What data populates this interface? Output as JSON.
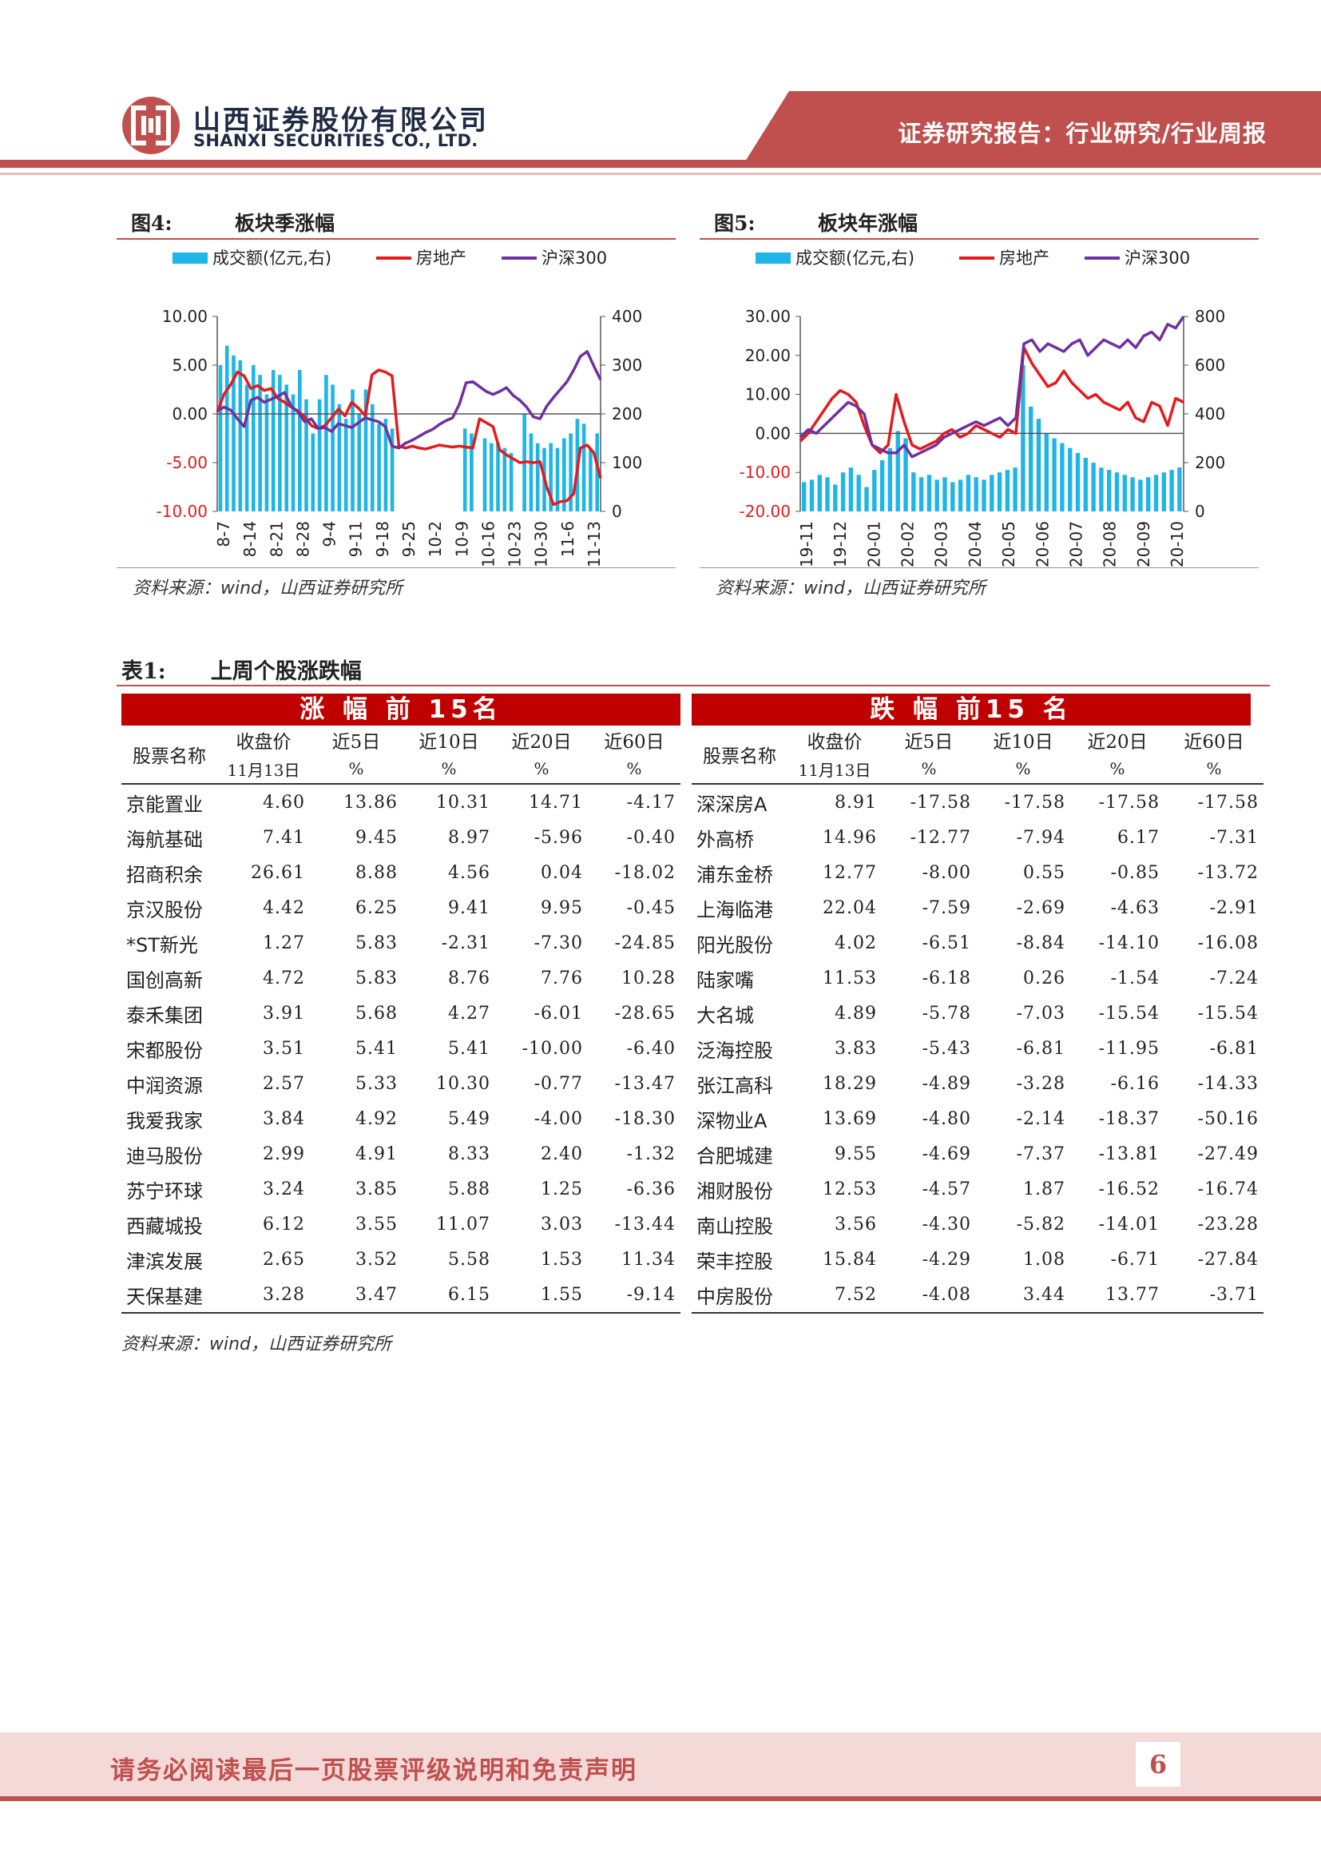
{
  "header": {
    "company_cn": "山西证券股份有限公司",
    "company_en": "SHANXI SECURITIES CO., LTD.",
    "report_type": "证券研究报告：行业研究/行业周报"
  },
  "fig4": {
    "label": "图4:",
    "title": "板块季涨幅",
    "source": "资料来源：wind，山西证券研究所"
  },
  "fig5": {
    "label": "图5:",
    "title": "板块年涨幅",
    "source": "资料来源：wind，山西证券研究所"
  },
  "chart_data": [
    {
      "type": "line",
      "legend": [
        "成交额(亿元,右)",
        "房地产",
        "沪深300"
      ],
      "colors": {
        "volume": "#1fb5e6",
        "realestate": "#e41a1c",
        "hs300": "#7030a0"
      },
      "y_left": {
        "ticks": [
          "10.00",
          "5.00",
          "0.00",
          "-5.00",
          "-10.00"
        ],
        "values": [
          10,
          5,
          0,
          -5,
          -10
        ],
        "range": [
          -10,
          10
        ]
      },
      "y_right": {
        "ticks": [
          "400",
          "300",
          "200",
          "100",
          "0"
        ],
        "values": [
          400,
          300,
          200,
          100,
          0
        ],
        "range": [
          0,
          400
        ]
      },
      "x_ticks": [
        "8-7",
        "8-14",
        "8-21",
        "8-28",
        "9-4",
        "9-11",
        "9-18",
        "9-25",
        "10-2",
        "10-9",
        "10-16",
        "10-23",
        "10-30",
        "11-6",
        "11-13"
      ],
      "series": [
        {
          "name": "房地产",
          "values": [
            0.2,
            2.0,
            3.0,
            4.3,
            3.9,
            2.6,
            2.9,
            2.4,
            2.6,
            1.6,
            1.2,
            0.7,
            0.3,
            -0.3,
            -1.2,
            -1.5,
            -1.2,
            -0.4,
            0.5,
            -0.2,
            1.2,
            0.6,
            -0.2,
            4.0,
            4.5,
            4.3,
            3.9,
            -3.3,
            -3.5,
            -3.3,
            -3.5,
            -3.6,
            -3.4,
            -3.2,
            -3.3,
            -3.4,
            -3.3,
            -3.4,
            -3.5,
            -0.5,
            -0.9,
            -1.3,
            -3.7,
            -4.2,
            -4.6,
            -5.0,
            -4.9,
            -5.0,
            -4.9,
            -7.5,
            -9.3,
            -9.0,
            -8.9,
            -8.2,
            -3.5,
            -3.2,
            -4.0,
            -6.6
          ]
        },
        {
          "name": "沪深300",
          "values": [
            0.3,
            0.7,
            0.4,
            -0.5,
            -1.3,
            1.4,
            1.7,
            1.2,
            1.5,
            1.8,
            2.2,
            0.8,
            0.2,
            -0.8,
            -0.5,
            -1.5,
            -1.4,
            -1.8,
            -1.0,
            -1.2,
            -1.4,
            -0.9,
            -0.4,
            -0.6,
            -0.8,
            -1.3,
            -3.3,
            -3.5,
            -3.0,
            -2.7,
            -2.3,
            -1.9,
            -1.6,
            -1.1,
            -0.7,
            -0.4,
            1.0,
            3.2,
            3.3,
            2.8,
            2.3,
            2.0,
            2.3,
            2.7,
            1.9,
            1.4,
            0.7,
            -0.3,
            -0.5,
            0.8,
            1.7,
            2.5,
            3.3,
            4.5,
            5.9,
            6.4,
            4.9,
            3.5
          ]
        },
        {
          "name": "成交额(亿元,右)",
          "values": [
            300,
            340,
            320,
            310,
            260,
            300,
            280,
            240,
            290,
            280,
            260,
            240,
            290,
            230,
            160,
            230,
            280,
            260,
            220,
            190,
            250,
            200,
            250,
            220,
            180,
            190,
            170,
            0,
            0,
            0,
            0,
            0,
            0,
            0,
            0,
            0,
            0,
            170,
            160,
            0,
            150,
            140,
            140,
            130,
            120,
            0,
            200,
            160,
            140,
            130,
            140,
            130,
            150,
            160,
            190,
            180,
            130,
            160
          ]
        }
      ]
    },
    {
      "type": "line",
      "legend": [
        "成交额(亿元,右)",
        "房地产",
        "沪深300"
      ],
      "colors": {
        "volume": "#1fb5e6",
        "realestate": "#e41a1c",
        "hs300": "#7030a0"
      },
      "y_left": {
        "ticks": [
          "30.00",
          "20.00",
          "10.00",
          "0.00",
          "-10.00",
          "-20.00"
        ],
        "values": [
          30,
          20,
          10,
          0,
          -10,
          -20
        ],
        "range": [
          -20,
          30
        ]
      },
      "y_right": {
        "ticks": [
          "800",
          "600",
          "400",
          "200",
          "0"
        ],
        "values": [
          800,
          600,
          400,
          200,
          0
        ],
        "range": [
          0,
          800
        ]
      },
      "x_ticks": [
        "19-11",
        "19-12",
        "20-01",
        "20-02",
        "20-03",
        "20-04",
        "20-05",
        "20-06",
        "20-07",
        "20-08",
        "20-09",
        "20-10"
      ],
      "series": [
        {
          "name": "房地产",
          "values": [
            -2,
            0,
            3,
            6,
            9,
            11,
            10,
            8,
            2,
            -3,
            -5,
            -3,
            10,
            3,
            -3,
            -4,
            -3,
            -2,
            0,
            1,
            -1,
            0,
            2,
            1,
            0,
            -1,
            1,
            0,
            22,
            18,
            15,
            12,
            13,
            16,
            13,
            11,
            9,
            10,
            8,
            7,
            6,
            8,
            4,
            3,
            8,
            7,
            2,
            9,
            8
          ]
        },
        {
          "name": "沪深300",
          "values": [
            -1,
            1,
            0,
            2,
            4,
            6,
            8,
            7,
            5,
            -3,
            -4,
            -5,
            -5,
            -3,
            -6,
            -5,
            -4,
            -3,
            -1,
            0,
            1,
            2,
            3,
            2,
            3,
            4,
            2,
            4,
            23,
            24,
            21,
            23,
            22,
            21,
            23,
            24,
            20,
            22,
            24,
            23,
            22,
            24,
            22,
            25,
            26,
            24,
            28,
            27,
            30
          ]
        },
        {
          "name": "成交额(亿元,右)",
          "values": [
            120,
            130,
            150,
            140,
            110,
            160,
            180,
            150,
            100,
            170,
            210,
            260,
            330,
            300,
            160,
            140,
            150,
            130,
            140,
            120,
            130,
            150,
            140,
            130,
            150,
            160,
            170,
            180,
            600,
            430,
            380,
            320,
            300,
            280,
            260,
            240,
            220,
            200,
            180,
            170,
            160,
            150,
            140,
            130,
            140,
            150,
            160,
            170,
            180
          ]
        }
      ]
    }
  ],
  "table": {
    "label": "表1:",
    "title": "上周个股涨跌幅",
    "gain_header": "涨 幅 前 15名",
    "loss_header": "跌 幅 前15 名",
    "col_name": "股票名称",
    "col_close": "收盘价",
    "col_5d": "近5日",
    "col_10d": "近10日",
    "col_20d": "近20日",
    "col_60d": "近60日",
    "sub_date": "11月13日",
    "sub_pct": "%",
    "gainers": [
      [
        "京能置业",
        "4.60",
        "13.86",
        "10.31",
        "14.71",
        "-4.17"
      ],
      [
        "海航基础",
        "7.41",
        "9.45",
        "8.97",
        "-5.96",
        "-0.40"
      ],
      [
        "招商积余",
        "26.61",
        "8.88",
        "4.56",
        "0.04",
        "-18.02"
      ],
      [
        "京汉股份",
        "4.42",
        "6.25",
        "9.41",
        "9.95",
        "-0.45"
      ],
      [
        "*ST新光",
        "1.27",
        "5.83",
        "-2.31",
        "-7.30",
        "-24.85"
      ],
      [
        "国创高新",
        "4.72",
        "5.83",
        "8.76",
        "7.76",
        "10.28"
      ],
      [
        "泰禾集团",
        "3.91",
        "5.68",
        "4.27",
        "-6.01",
        "-28.65"
      ],
      [
        "宋都股份",
        "3.51",
        "5.41",
        "5.41",
        "-10.00",
        "-6.40"
      ],
      [
        "中润资源",
        "2.57",
        "5.33",
        "10.30",
        "-0.77",
        "-13.47"
      ],
      [
        "我爱我家",
        "3.84",
        "4.92",
        "5.49",
        "-4.00",
        "-18.30"
      ],
      [
        "迪马股份",
        "2.99",
        "4.91",
        "8.33",
        "2.40",
        "-1.32"
      ],
      [
        "苏宁环球",
        "3.24",
        "3.85",
        "5.88",
        "1.25",
        "-6.36"
      ],
      [
        "西藏城投",
        "6.12",
        "3.55",
        "11.07",
        "3.03",
        "-13.44"
      ],
      [
        "津滨发展",
        "2.65",
        "3.52",
        "5.58",
        "1.53",
        "11.34"
      ],
      [
        "天保基建",
        "3.28",
        "3.47",
        "6.15",
        "1.55",
        "-9.14"
      ]
    ],
    "losers": [
      [
        "深深房A",
        "8.91",
        "-17.58",
        "-17.58",
        "-17.58",
        "-17.58"
      ],
      [
        "外高桥",
        "14.96",
        "-12.77",
        "-7.94",
        "6.17",
        "-7.31"
      ],
      [
        "浦东金桥",
        "12.77",
        "-8.00",
        "0.55",
        "-0.85",
        "-13.72"
      ],
      [
        "上海临港",
        "22.04",
        "-7.59",
        "-2.69",
        "-4.63",
        "-2.91"
      ],
      [
        "阳光股份",
        "4.02",
        "-6.51",
        "-8.84",
        "-14.10",
        "-16.08"
      ],
      [
        "陆家嘴",
        "11.53",
        "-6.18",
        "0.26",
        "-1.54",
        "-7.24"
      ],
      [
        "大名城",
        "4.89",
        "-5.78",
        "-7.03",
        "-15.54",
        "-15.54"
      ],
      [
        "泛海控股",
        "3.83",
        "-5.43",
        "-6.81",
        "-11.95",
        "-6.81"
      ],
      [
        "张江高科",
        "18.29",
        "-4.89",
        "-3.28",
        "-6.16",
        "-14.33"
      ],
      [
        "深物业A",
        "13.69",
        "-4.80",
        "-2.14",
        "-18.37",
        "-50.16"
      ],
      [
        "合肥城建",
        "9.55",
        "-4.69",
        "-7.37",
        "-13.81",
        "-27.49"
      ],
      [
        "湘财股份",
        "12.53",
        "-4.57",
        "1.87",
        "-16.52",
        "-16.74"
      ],
      [
        "南山控股",
        "3.56",
        "-4.30",
        "-5.82",
        "-14.01",
        "-23.28"
      ],
      [
        "荣丰控股",
        "15.84",
        "-4.29",
        "1.08",
        "-6.71",
        "-27.84"
      ],
      [
        "中房股份",
        "7.52",
        "-4.08",
        "3.44",
        "13.77",
        "-3.71"
      ]
    ],
    "source": "资料来源：wind，山西证券研究所"
  },
  "footer": {
    "disclaimer": "请务必阅读最后一页股票评级说明和免责声明",
    "page": "6"
  }
}
